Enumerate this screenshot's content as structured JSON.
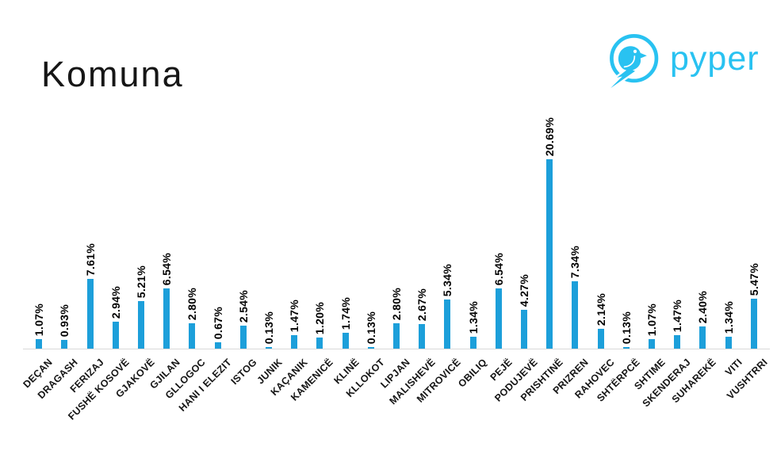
{
  "page": {
    "title": "Komuna"
  },
  "logo": {
    "text": "pyper",
    "color": "#29c2f1"
  },
  "chart_data": {
    "type": "bar",
    "title": "Komuna",
    "categories": [
      "DEÇAN",
      "DRAGASH",
      "FERIZAJ",
      "FUSHË KOSOVË",
      "GJAKOVË",
      "GJILAN",
      "GLLOGOC",
      "HANI I ELEZIT",
      "ISTOG",
      "JUNIK",
      "KAÇANIK",
      "KAMENICË",
      "KLINË",
      "KLLOKOT",
      "LIPJAN",
      "MALISHEVË",
      "MITROVICË",
      "OBILIQ",
      "PEJË",
      "PODUJEVË",
      "PRISHTINË",
      "PRIZREN",
      "RAHOVEC",
      "SHTËRPCË",
      "SHTIME",
      "SKENDERAJ",
      "SUHAREKË",
      "VITI",
      "VUSHTRRI"
    ],
    "values": [
      1.07,
      0.93,
      7.61,
      2.94,
      5.21,
      6.54,
      2.8,
      0.67,
      2.54,
      0.13,
      1.47,
      1.2,
      1.74,
      0.13,
      2.8,
      2.67,
      5.34,
      1.34,
      6.54,
      4.27,
      20.69,
      7.34,
      2.14,
      0.13,
      1.07,
      1.47,
      2.4,
      1.34,
      5.47
    ],
    "value_labels": [
      "1.07%",
      "0.93%",
      "7.61%",
      "2.94%",
      "5.21%",
      "6.54%",
      "2.80%",
      "0.67%",
      "2.54%",
      "0.13%",
      "1.47%",
      "1.20%",
      "1.74%",
      "0.13%",
      "2.80%",
      "2.67%",
      "5.34%",
      "1.34%",
      "6.54%",
      "4.27%",
      "20.69%",
      "7.34%",
      "2.14%",
      "0.13%",
      "1.07%",
      "1.47%",
      "2.40%",
      "1.34%",
      "5.47%"
    ],
    "xlabel": "",
    "ylabel": "",
    "ylim": [
      0,
      22
    ],
    "grid": false,
    "legend": "none",
    "bar_color": "#1c9fda",
    "axis_color": "#d9d9d9",
    "value_label_rotation": 90,
    "category_label_rotation": 45
  }
}
